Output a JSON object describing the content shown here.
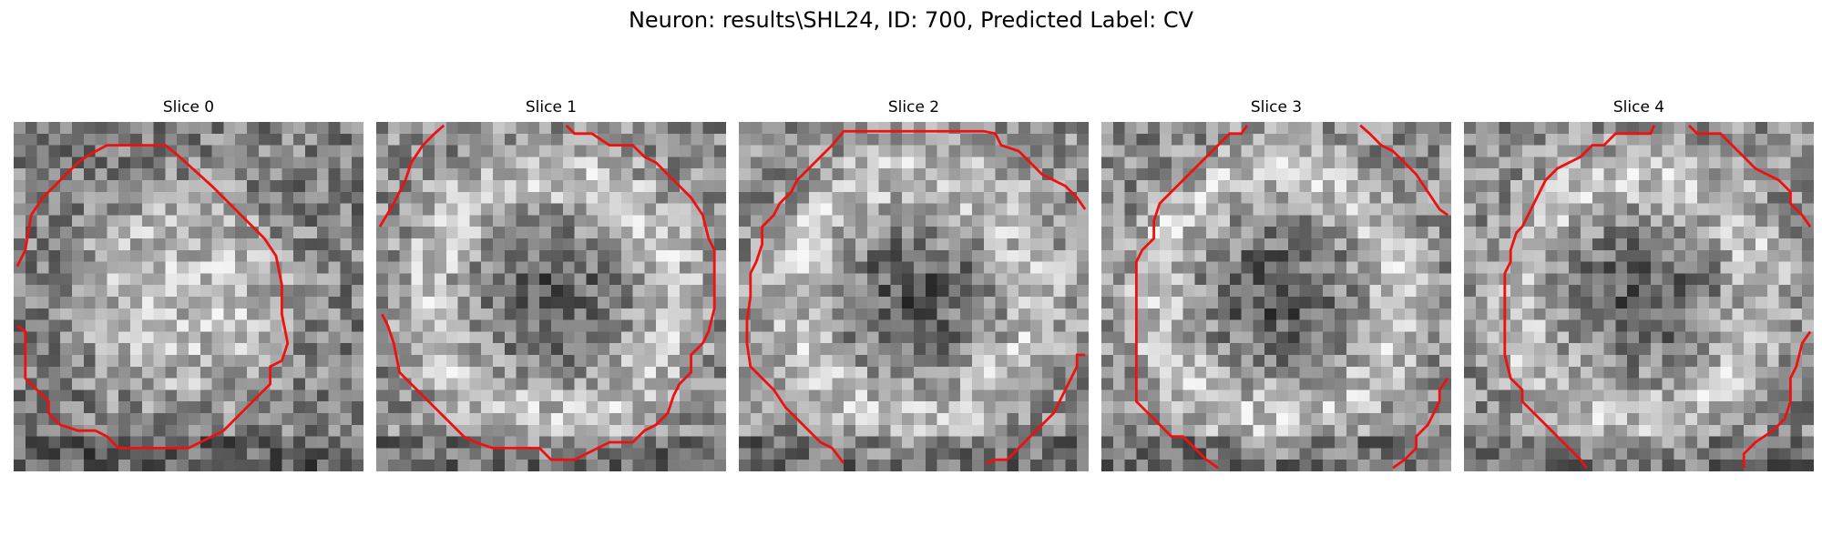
{
  "figure": {
    "title": "Neuron: results\\SHL24, ID: 700, Predicted Label: CV"
  },
  "panels": [
    {
      "title": "Slice 0",
      "dark_center": false,
      "contour_color": "#ee1111"
    },
    {
      "title": "Slice 1",
      "dark_center": true,
      "contour_color": "#ee1111"
    },
    {
      "title": "Slice 2",
      "dark_center": true,
      "contour_color": "#ee1111"
    },
    {
      "title": "Slice 3",
      "dark_center": true,
      "contour_color": "#ee1111"
    },
    {
      "title": "Slice 4",
      "dark_center": true,
      "contour_color": "#ee1111"
    }
  ]
}
